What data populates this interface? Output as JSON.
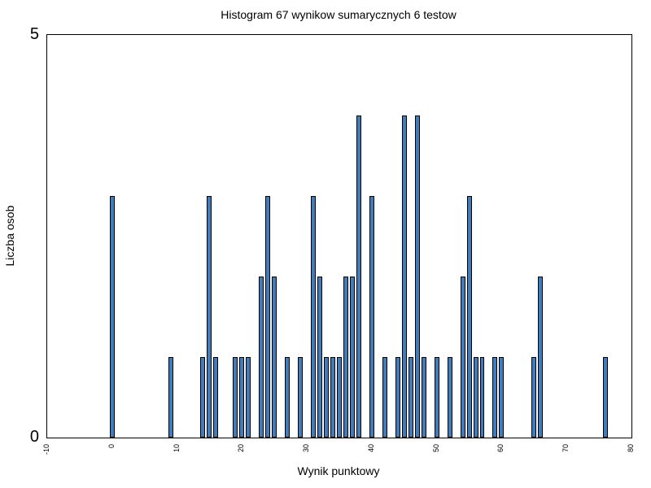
{
  "chart_data": {
    "type": "bar",
    "title": "Histogram 67 wynikow sumarycznych 6 testow",
    "xlabel": "Wynik punktowy",
    "ylabel": "Liczba osob",
    "xlim": [
      -10,
      80
    ],
    "ylim": [
      0,
      5
    ],
    "xticks": [
      -10,
      0,
      10,
      20,
      30,
      40,
      50,
      60,
      70,
      80
    ],
    "yticks": [
      0,
      5
    ],
    "grid": false,
    "legend": false,
    "bar_width_units": 0.75,
    "colors": {
      "bar_fill": "#3E7DBE",
      "bar_border": "#000000",
      "axis": "#000000",
      "text": "#000000",
      "background": "#FFFFFF"
    },
    "x": [
      0,
      9,
      14,
      15,
      16,
      19,
      20,
      21,
      23,
      24,
      25,
      27,
      29,
      31,
      32,
      33,
      34,
      35,
      36,
      37,
      38,
      40,
      42,
      44,
      45,
      46,
      47,
      48,
      50,
      52,
      54,
      55,
      56,
      57,
      59,
      60,
      65,
      66,
      76
    ],
    "values": [
      3,
      1,
      1,
      3,
      1,
      1,
      1,
      1,
      2,
      3,
      2,
      1,
      1,
      3,
      2,
      1,
      1,
      1,
      2,
      2,
      4,
      3,
      1,
      1,
      4,
      1,
      4,
      1,
      1,
      1,
      2,
      3,
      1,
      1,
      1,
      1,
      1,
      2,
      1
    ]
  }
}
